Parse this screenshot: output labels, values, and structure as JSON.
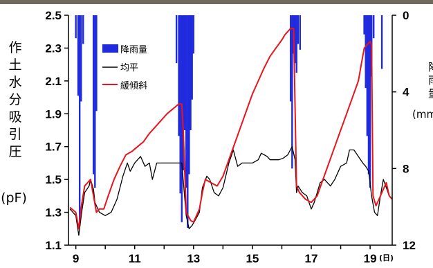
{
  "chart_data": {
    "type": "line",
    "title": "",
    "x_unit": "(日)",
    "x_ticks": [
      "9",
      "11",
      "13",
      "15",
      "17",
      "19"
    ],
    "xlim": [
      8.75,
      19.75
    ],
    "left_axis": {
      "label": "作土水分吸引圧",
      "unit": "(pF)",
      "ylim": [
        1.1,
        2.5
      ],
      "ticks": [
        "1.1",
        "1.3",
        "1.5",
        "1.7",
        "1.9",
        "2.1",
        "2.3",
        "2.5"
      ]
    },
    "right_axis": {
      "label": "降雨量",
      "unit": "(mm/h)",
      "ylim": [
        0,
        12
      ],
      "inverted": true,
      "ticks": [
        "0",
        "4",
        "8",
        "12"
      ]
    },
    "legend": {
      "placement": "top-left",
      "items": [
        "降雨量",
        "均平",
        "緩傾斜"
      ]
    },
    "colors": {
      "rain": "#1f2bdc",
      "flat": "#000000",
      "slope": "#e8141e"
    },
    "series": [
      {
        "name": "均平",
        "x": [
          8.8,
          9.0,
          9.1,
          9.2,
          9.3,
          9.45,
          9.5,
          9.6,
          9.65,
          9.75,
          9.8,
          10.0,
          10.2,
          10.4,
          10.6,
          10.75,
          10.85,
          11.0,
          11.2,
          11.35,
          11.5,
          11.6,
          11.75,
          11.9,
          12.1,
          12.3,
          12.5,
          12.6,
          12.75,
          12.85,
          12.95,
          13.05,
          13.2,
          13.3,
          13.45,
          13.55,
          13.7,
          13.85,
          14.0,
          14.2,
          14.35,
          14.5,
          14.65,
          14.85,
          15.0,
          15.2,
          15.3,
          15.5,
          15.6,
          15.75,
          15.9,
          16.05,
          16.2,
          16.35,
          16.45,
          16.5,
          16.55,
          16.7,
          16.85,
          17.0,
          17.1,
          17.3,
          17.45,
          17.65,
          17.8,
          18.0,
          18.2,
          18.3,
          18.45,
          18.6,
          18.75,
          18.85,
          18.95,
          19.05,
          19.15,
          19.25,
          19.35,
          19.45,
          19.55,
          19.65,
          19.75
        ],
        "y": [
          1.32,
          1.28,
          1.16,
          1.3,
          1.42,
          1.46,
          1.5,
          1.44,
          1.36,
          1.32,
          1.3,
          1.28,
          1.3,
          1.38,
          1.52,
          1.6,
          1.55,
          1.6,
          1.64,
          1.58,
          1.6,
          1.5,
          1.6,
          1.6,
          1.6,
          1.6,
          1.6,
          1.6,
          1.28,
          1.2,
          1.22,
          1.25,
          1.3,
          1.45,
          1.52,
          1.5,
          1.42,
          1.4,
          1.45,
          1.6,
          1.68,
          1.58,
          1.6,
          1.6,
          1.6,
          1.62,
          1.66,
          1.64,
          1.62,
          1.62,
          1.62,
          1.63,
          1.65,
          1.7,
          1.62,
          1.42,
          1.46,
          1.42,
          1.4,
          1.32,
          1.36,
          1.48,
          1.5,
          1.46,
          1.5,
          1.58,
          1.6,
          1.68,
          1.68,
          1.64,
          1.6,
          1.58,
          1.55,
          1.4,
          1.3,
          1.28,
          1.4,
          1.5,
          1.45,
          1.4,
          1.38
        ]
      },
      {
        "name": "緩傾斜",
        "x": [
          8.8,
          9.0,
          9.1,
          9.2,
          9.3,
          9.5,
          9.6,
          9.7,
          9.8,
          9.95,
          10.1,
          10.3,
          10.5,
          10.7,
          10.9,
          11.1,
          11.3,
          11.5,
          11.7,
          11.9,
          12.1,
          12.3,
          12.5,
          12.6,
          12.65,
          12.75,
          12.9,
          13.0,
          13.1,
          13.2,
          13.3,
          13.4,
          13.6,
          13.8,
          14.0,
          14.2,
          14.4,
          14.6,
          14.8,
          15.0,
          15.2,
          15.4,
          15.6,
          15.8,
          16.0,
          16.1,
          16.2,
          16.3,
          16.35,
          16.4,
          16.5,
          16.6,
          16.8,
          17.0,
          17.2,
          17.4,
          17.6,
          17.8,
          18.0,
          18.2,
          18.4,
          18.6,
          18.7,
          18.8,
          18.9,
          19.0,
          19.05,
          19.1,
          19.2,
          19.3,
          19.45,
          19.55,
          19.65,
          19.75
        ],
        "y": [
          1.33,
          1.3,
          1.2,
          1.35,
          1.46,
          1.5,
          1.4,
          1.3,
          1.32,
          1.32,
          1.4,
          1.5,
          1.58,
          1.65,
          1.67,
          1.7,
          1.73,
          1.78,
          1.82,
          1.86,
          1.9,
          1.93,
          1.96,
          1.96,
          1.8,
          1.3,
          1.25,
          1.24,
          1.28,
          1.32,
          1.42,
          1.5,
          1.48,
          1.46,
          1.52,
          1.62,
          1.72,
          1.82,
          1.92,
          2.02,
          2.1,
          2.18,
          2.25,
          2.3,
          2.35,
          2.38,
          2.4,
          2.42,
          2.42,
          2.42,
          1.46,
          1.42,
          1.38,
          1.36,
          1.4,
          1.5,
          1.6,
          1.7,
          1.8,
          1.9,
          2.0,
          2.1,
          2.2,
          2.3,
          2.32,
          2.34,
          2.32,
          1.4,
          1.34,
          1.38,
          1.44,
          1.48,
          1.4,
          1.38
        ]
      }
    ],
    "rain": {
      "name": "降雨量",
      "bars": [
        [
          9.0,
          1.2
        ],
        [
          9.08,
          4.2
        ],
        [
          9.13,
          11.0
        ],
        [
          9.18,
          4.5
        ],
        [
          9.25,
          1.5
        ],
        [
          9.6,
          8.3
        ],
        [
          9.65,
          9.0
        ],
        [
          9.7,
          5.0
        ],
        [
          12.42,
          2.5
        ],
        [
          12.5,
          6.3
        ],
        [
          12.55,
          9.3
        ],
        [
          12.6,
          10.8
        ],
        [
          12.65,
          8.1
        ],
        [
          12.7,
          6.0
        ],
        [
          12.75,
          9.0
        ],
        [
          12.8,
          11.1
        ],
        [
          12.85,
          8.3
        ],
        [
          12.9,
          6.0
        ],
        [
          12.95,
          4.4
        ],
        [
          13.0,
          2.0
        ],
        [
          16.3,
          4.5
        ],
        [
          16.35,
          8.0
        ],
        [
          16.4,
          2.0
        ],
        [
          16.45,
          2.5
        ],
        [
          16.5,
          3.0
        ],
        [
          16.55,
          1.5
        ],
        [
          16.62,
          1.8
        ],
        [
          18.8,
          1.0
        ],
        [
          18.85,
          3.8
        ],
        [
          18.9,
          6.3
        ],
        [
          18.95,
          8.3
        ],
        [
          19.0,
          9.0
        ],
        [
          19.05,
          3.2
        ],
        [
          19.12,
          1.2
        ],
        [
          19.4,
          2.8
        ]
      ]
    }
  }
}
